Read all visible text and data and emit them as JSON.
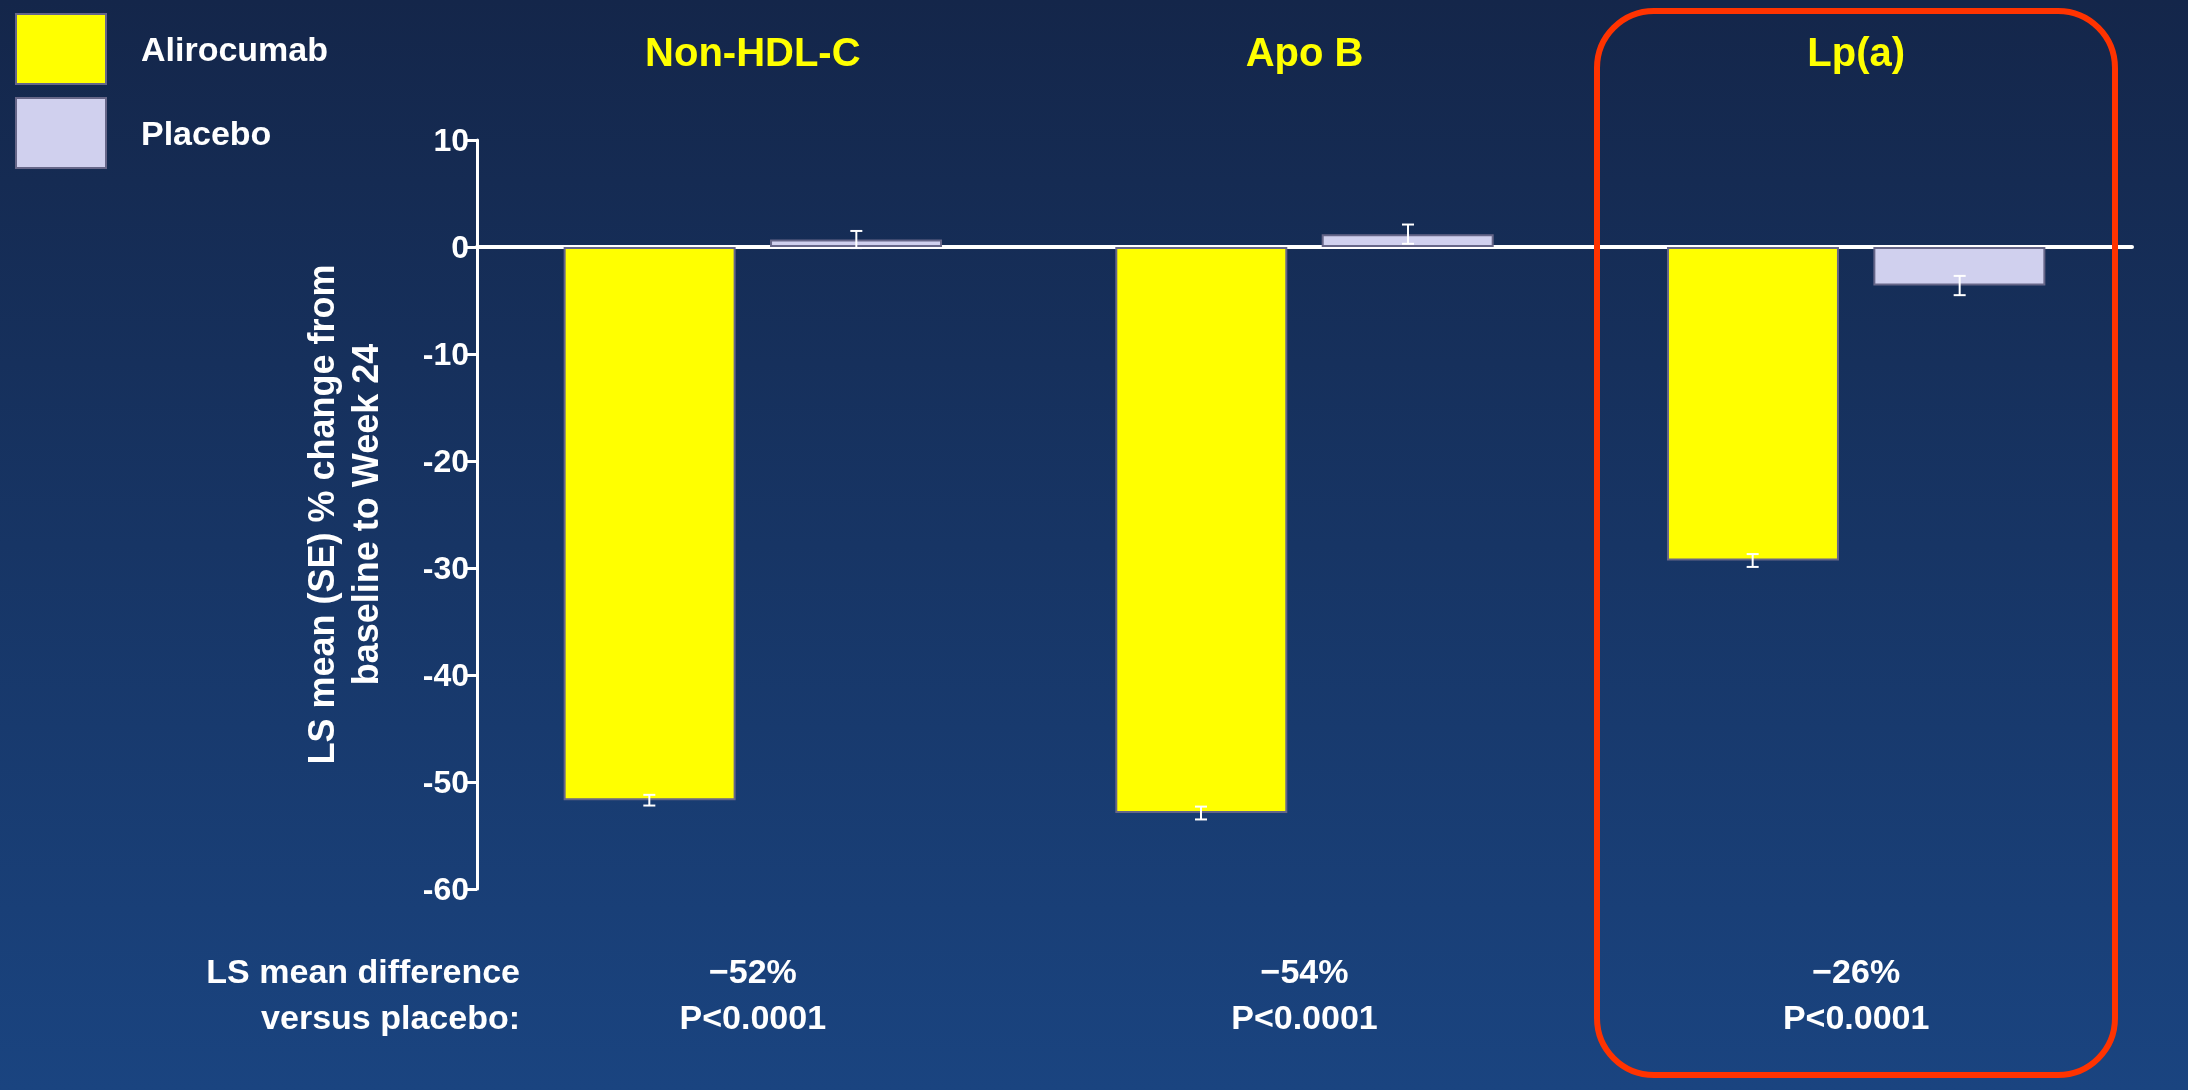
{
  "chart_data": {
    "type": "bar",
    "ylabel": "LS mean (SE) % change from\nbaseline to Week 24",
    "categories": [
      "Non-HDL-C",
      "Apo B",
      "Lp(a)"
    ],
    "series": [
      {
        "name": "Alirocumab",
        "color": "#ffff00",
        "values": [
          -51.7,
          -52.9,
          -29.3
        ],
        "errors": [
          0.5,
          0.6,
          0.6
        ]
      },
      {
        "name": "Placebo",
        "color": "#d0d0ee",
        "values": [
          0.7,
          1.2,
          -3.6
        ],
        "errors": [
          0.8,
          0.9,
          0.9
        ]
      }
    ],
    "ylim": [
      -60,
      10
    ],
    "yticks": [
      -60,
      -50,
      -40,
      -30,
      -20,
      -10,
      0,
      10
    ],
    "legend": "top left",
    "annotations": [
      "LS mean difference\nversus placebo:",
      "−52%\nP<0.0001",
      "−54%\nP<0.0001",
      "−26%\nP<0.0001"
    ]
  }
}
